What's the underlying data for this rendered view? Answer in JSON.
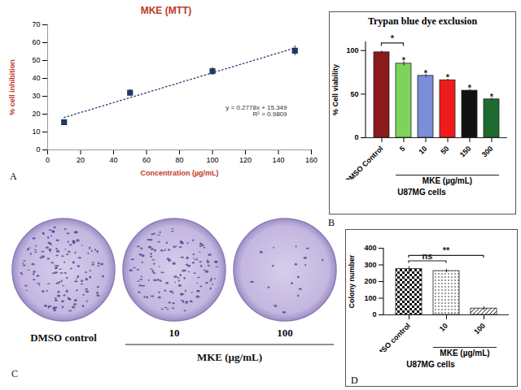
{
  "chart_data": [
    {
      "type": "scatter",
      "panel": "A",
      "title": "MKE (MTT)",
      "xlabel": "Concentration (µg/mL)",
      "ylabel": "% cell inhibition",
      "x": [
        10,
        50,
        100,
        150
      ],
      "values": [
        15.5,
        32,
        44,
        55.5
      ],
      "errors": [
        1.2,
        1.8,
        2.2,
        2.8
      ],
      "color": "#1f3864",
      "marker": "square",
      "trendline": {
        "x": [
          10,
          150
        ],
        "values": [
          18.127,
          57.019
        ],
        "equation": "y = 0.2778x + 15.349",
        "r2": "R² = 0.9809",
        "line_style": "dotted"
      },
      "xlim": [
        0,
        160
      ],
      "xticks": [
        0,
        20,
        40,
        60,
        80,
        100,
        120,
        140,
        160
      ],
      "ylim": [
        0,
        70
      ],
      "yticks": [
        0,
        10,
        20,
        30,
        40,
        50,
        60,
        70
      ],
      "grid": false
    },
    {
      "type": "bar",
      "panel": "B",
      "title": "Trypan blue dye exclusion",
      "ylabel": "% Cell viability",
      "xlabel": "MKE (µg/mL)",
      "caption": "U87MG cells",
      "categories": [
        "DMSO Control",
        "5",
        "10",
        "50",
        "150",
        "300"
      ],
      "values": [
        98,
        85,
        71,
        66,
        54,
        44
      ],
      "errors": [
        1.5,
        2.5,
        1.5,
        1.2,
        1.5,
        1.5
      ],
      "colors": [
        "#8b1a1a",
        "#7dd35b",
        "#7b8ed8",
        "#f01c1c",
        "#111111",
        "#1e6b30"
      ],
      "annotations": [
        null,
        "*",
        "*",
        "*",
        "*",
        "*"
      ],
      "brackets": [
        {
          "from": "DMSO Control",
          "to": "5",
          "label": "*"
        }
      ],
      "ylim": [
        0,
        110
      ],
      "yticks": [
        0,
        50,
        100
      ]
    },
    {
      "type": "image",
      "panel": "C",
      "categories": [
        "DMSO control",
        "10",
        "100"
      ],
      "xlabel": "MKE (µg/mL)"
    },
    {
      "type": "bar",
      "panel": "D",
      "ylabel": "Colony number",
      "xlabel": "MKE (µg/mL)",
      "caption": "U87MG cells",
      "categories": [
        "DMSO control",
        "10",
        "100"
      ],
      "values": [
        275,
        263,
        38
      ],
      "errors": [
        15,
        10,
        10
      ],
      "brackets": [
        {
          "from": "DMSO control",
          "to": "10",
          "label": "ns"
        },
        {
          "from": "DMSO control",
          "to": "100",
          "label": "**"
        }
      ],
      "ylim": [
        0,
        400
      ],
      "yticks": [
        0,
        100,
        200,
        300,
        400
      ]
    }
  ]
}
